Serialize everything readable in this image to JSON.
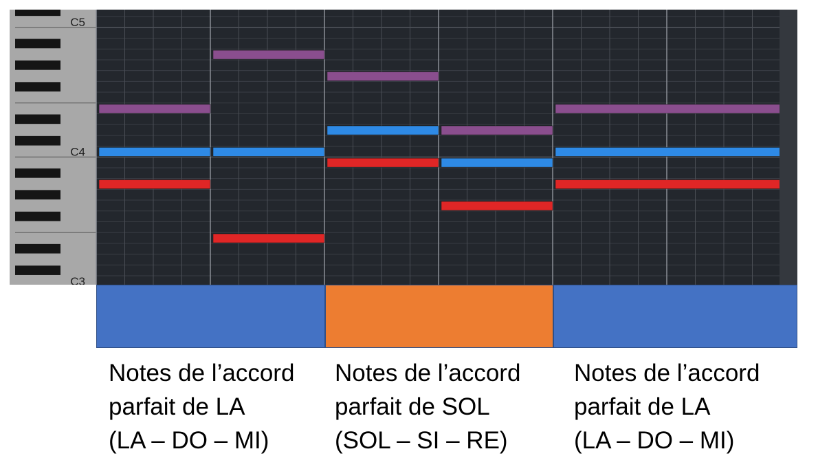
{
  "keyboard": {
    "labels": [
      {
        "name": "C5",
        "pitch": 72
      },
      {
        "name": "C4",
        "pitch": 60
      },
      {
        "name": "C3",
        "pitch": 48
      }
    ]
  },
  "piano_roll": {
    "grid_color": "#4a4e55",
    "background": "#23272d",
    "notes": [
      {
        "start": 0,
        "end": 4,
        "pitch": 64,
        "color": "#8a4e8e"
      },
      {
        "start": 0,
        "end": 4,
        "pitch": 60,
        "color": "#2e8ae6"
      },
      {
        "start": 0,
        "end": 4,
        "pitch": 57,
        "color": "#e02626"
      },
      {
        "start": 4,
        "end": 8,
        "pitch": 69,
        "color": "#8a4e8e"
      },
      {
        "start": 4,
        "end": 8,
        "pitch": 60,
        "color": "#2e8ae6"
      },
      {
        "start": 4,
        "end": 8,
        "pitch": 52,
        "color": "#e02626"
      },
      {
        "start": 8,
        "end": 12,
        "pitch": 67,
        "color": "#8a4e8e"
      },
      {
        "start": 8,
        "end": 12,
        "pitch": 62,
        "color": "#2e8ae6"
      },
      {
        "start": 8,
        "end": 12,
        "pitch": 59,
        "color": "#e02626"
      },
      {
        "start": 12,
        "end": 16,
        "pitch": 62,
        "color": "#8a4e8e"
      },
      {
        "start": 12,
        "end": 16,
        "pitch": 59,
        "color": "#2e8ae6"
      },
      {
        "start": 12,
        "end": 16,
        "pitch": 55,
        "color": "#e02626"
      },
      {
        "start": 16,
        "end": 24,
        "pitch": 64,
        "color": "#8a4e8e"
      },
      {
        "start": 16,
        "end": 24,
        "pitch": 60,
        "color": "#2e8ae6"
      },
      {
        "start": 16,
        "end": 24,
        "pitch": 57,
        "color": "#e02626"
      }
    ]
  },
  "sections": [
    {
      "color": "#4472c4",
      "caption": [
        "Notes de l’accord",
        "parfait de LA",
        "(LA – DO – MI)"
      ]
    },
    {
      "color": "#ed7d31",
      "caption": [
        "Notes de l’accord",
        "parfait de SOL",
        "(SOL – SI – RE)"
      ]
    },
    {
      "color": "#4472c4",
      "caption": [
        "Notes de l’accord",
        "parfait de LA",
        "(LA – DO – MI)"
      ]
    }
  ]
}
